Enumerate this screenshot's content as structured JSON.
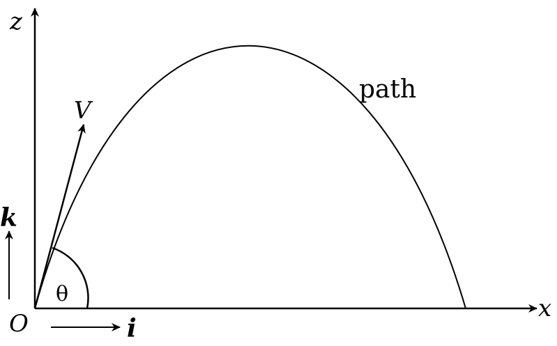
{
  "labels": {
    "z_axis": "z",
    "x_axis": "x",
    "origin": "O",
    "velocity": "V",
    "angle": "θ",
    "path": "path",
    "unit_k": "k",
    "unit_i": "i"
  },
  "colors": {
    "ink": "#000000",
    "background": "#ffffff"
  }
}
